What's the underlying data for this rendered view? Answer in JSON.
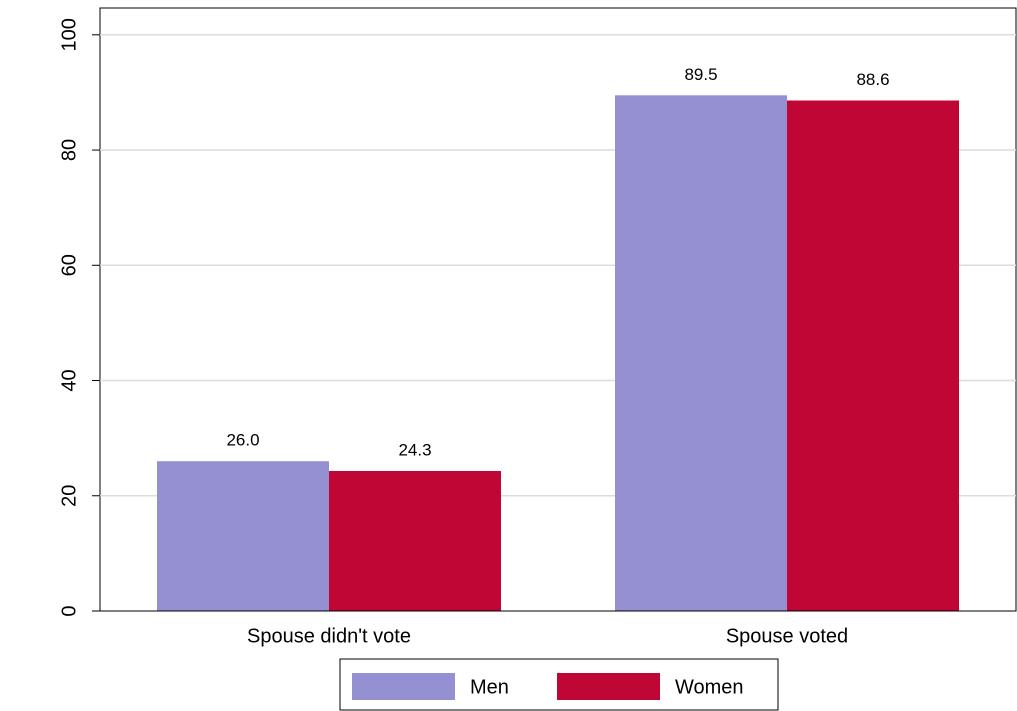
{
  "chart_data": {
    "type": "bar",
    "categories": [
      "Spouse didn't vote",
      "Spouse voted"
    ],
    "series": [
      {
        "name": "Men",
        "color": "#9490d2",
        "values": [
          26,
          89.5
        ],
        "value_labels": [
          "26.0",
          "89.5"
        ]
      },
      {
        "name": "Women",
        "color": "#c00634",
        "values": [
          24.3,
          88.6
        ],
        "value_labels": [
          "24.3",
          "88.6"
        ]
      }
    ],
    "ylim": [
      0,
      105
    ],
    "yticks": [
      0,
      20,
      40,
      60,
      80,
      100
    ],
    "grid": true,
    "legend": "bottom"
  }
}
